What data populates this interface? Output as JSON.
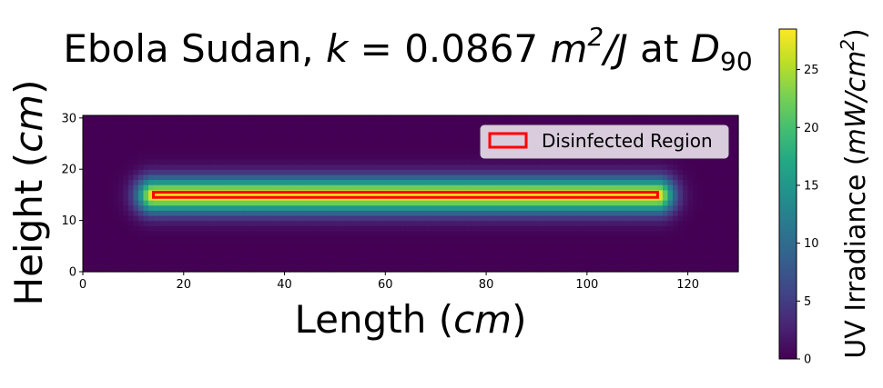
{
  "chart_data": {
    "type": "heatmap",
    "title": {
      "prefix": "Ebola Sudan, ",
      "k_symbol": "k",
      "equals_value": " = 0.0867 ",
      "unit_m": "m",
      "unit_exp": "2",
      "unit_rest": "/J",
      "at": " at ",
      "d_symbol": "D",
      "d_sub": "90"
    },
    "xlabel": {
      "text": "Length (",
      "unit": "cm",
      "close": ")"
    },
    "ylabel": {
      "text": "Height (",
      "unit": "cm",
      "close": ")"
    },
    "colorbar_label": {
      "text": "UV Irradiance (",
      "unit": "mW/cm",
      "exp": "2",
      "close": ")"
    },
    "xlim": [
      0,
      130
    ],
    "ylim": [
      0,
      30.5
    ],
    "x_ticks": [
      0,
      20,
      40,
      60,
      80,
      100,
      120
    ],
    "y_ticks": [
      0,
      10,
      20,
      30
    ],
    "colorbar_range": [
      0,
      28.5
    ],
    "colorbar_ticks": [
      0,
      5,
      10,
      15,
      20,
      25
    ],
    "colormap": "viridis",
    "source": {
      "x_start": 14,
      "x_end": 114,
      "y": 15,
      "peak": 28.5
    },
    "disinfected_region": {
      "x": [
        14,
        114
      ],
      "y": [
        14.5,
        15.5
      ],
      "edge_color": "#ff0000"
    },
    "legend": {
      "label": "Disinfected Region",
      "position": "upper right"
    },
    "grid": false
  }
}
